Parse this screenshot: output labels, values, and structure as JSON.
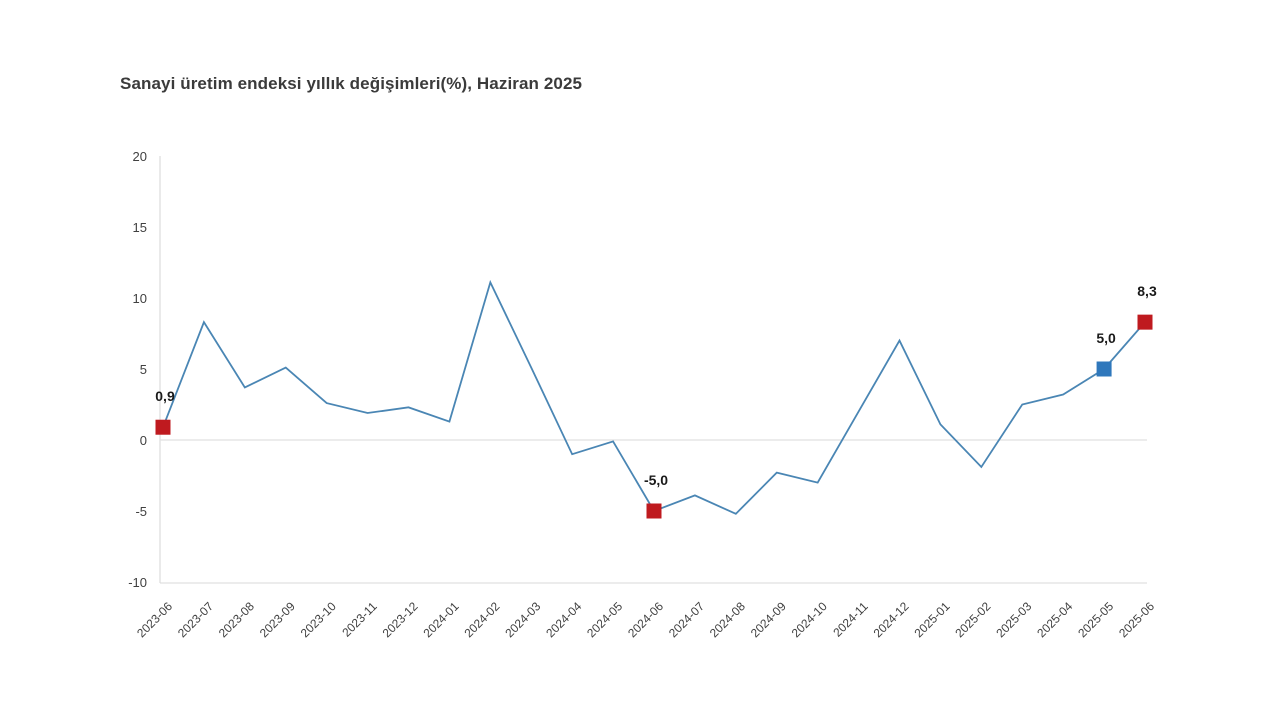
{
  "title": "Sanayi üretim endeksi yıllık değişimleri(%), Haziran 2025",
  "colors": {
    "line": "#4a86b4",
    "marker_red": "#bf1a1f",
    "marker_blue": "#2f78bc",
    "axis_text": "#404040",
    "grid_line": "#d9d9d9",
    "axis_line": "#e3e3e3",
    "data_label": "#1a1a1a",
    "background": "#ffffff"
  },
  "chart_data": {
    "type": "line",
    "title": "Sanayi üretim endeksi yıllık değişimleri(%), Haziran 2025",
    "xlabel": "",
    "ylabel": "",
    "ylim": [
      -10,
      20
    ],
    "yticks": [
      20,
      15,
      10,
      5,
      0,
      -5,
      -10
    ],
    "grid": "zero-line-only",
    "legend": "none",
    "categories": [
      "2023-06",
      "2023-07",
      "2023-08",
      "2023-09",
      "2023-10",
      "2023-11",
      "2023-12",
      "2024-01",
      "2024-02",
      "2024-03",
      "2024-04",
      "2024-05",
      "2024-06",
      "2024-07",
      "2024-08",
      "2024-09",
      "2024-10",
      "2024-11",
      "2024-12",
      "2025-01",
      "2025-02",
      "2025-03",
      "2025-04",
      "2025-05",
      "2025-06"
    ],
    "values": [
      0.9,
      8.3,
      3.7,
      5.1,
      2.6,
      1.9,
      2.3,
      1.3,
      11.1,
      5.1,
      -1.0,
      -0.1,
      -5.0,
      -3.9,
      -5.2,
      -2.3,
      -3.0,
      2.0,
      7.0,
      1.1,
      -1.9,
      2.5,
      3.2,
      5.0,
      8.3
    ],
    "highlights": [
      {
        "index": 0,
        "label": "0,9",
        "color_key": "marker_red"
      },
      {
        "index": 12,
        "label": "-5,0",
        "color_key": "marker_red"
      },
      {
        "index": 23,
        "label": "5,0",
        "color_key": "marker_blue"
      },
      {
        "index": 24,
        "label": "8,3",
        "color_key": "marker_red"
      }
    ]
  }
}
